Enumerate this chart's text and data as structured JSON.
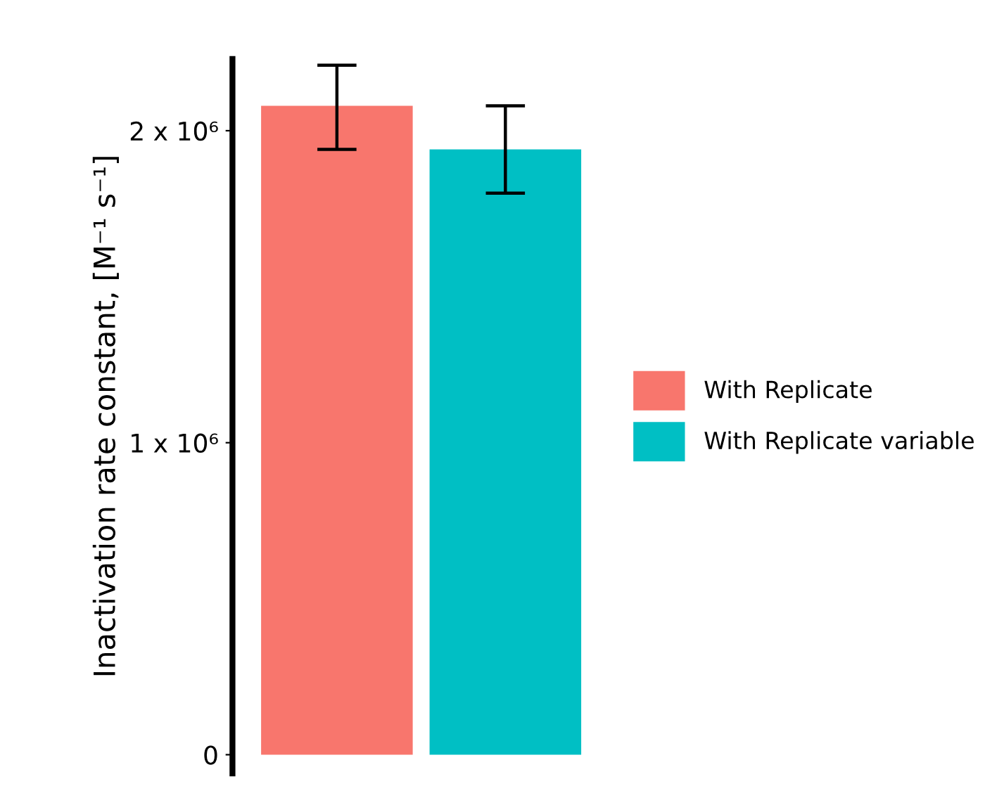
{
  "chart_data": {
    "type": "bar",
    "ylabel": "Inactivation rate constant, [M⁻¹ s⁻¹]",
    "categories": [
      null,
      null
    ],
    "series": [
      {
        "name": "With Replicate",
        "color": "#f8766d",
        "values": [
          2080000,
          null
        ],
        "errors": [
          [
            1940000,
            2210000
          ],
          null
        ]
      },
      {
        "name": "With Replicate variable",
        "color": "#00bfc4",
        "values": [
          null,
          1940000
        ],
        "errors": [
          null,
          [
            1800000,
            2080000
          ]
        ]
      }
    ],
    "ylim": [
      -60000,
      2230000
    ],
    "yticks": [
      0,
      {
        "value": 1000000,
        "label": "1 x 10⁶"
      },
      {
        "value": 2000000,
        "label": "2 x 10⁶"
      }
    ],
    "stacked": true,
    "grid": false,
    "legend": "right",
    "tick_labels": "y"
  }
}
